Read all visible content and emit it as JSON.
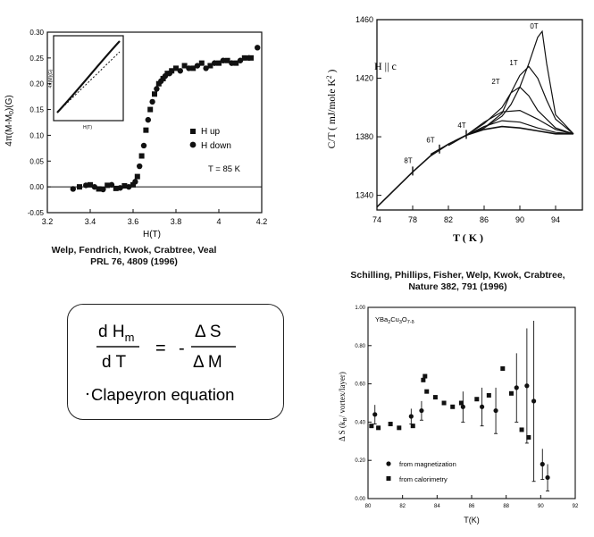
{
  "fig1": {
    "ylabel": "4π(M-M",
    "ylabel_sub": "0",
    "ylabel_tail": ")(G)",
    "xlabel": "H(T)",
    "legend_up": "H up",
    "legend_down": "H down",
    "temperature": "T = 85 K",
    "inset_xlabel": "H(T)",
    "inset_ylabel": "4π(M)(G)",
    "caption_line1": "Welp, Fendrich, Kwok, Crabtree, Veal",
    "caption_line2": "PRL 76, 4809 (1996)"
  },
  "fig2": {
    "title": "H || c",
    "ylabel": "C/T ( mJ/mole K",
    "ylabel_sup": "2",
    "ylabel_tail": " )",
    "xlabel": "T ( K )",
    "curve_labels": [
      "8T",
      "6T",
      "4T",
      "2T",
      "1T",
      "0T"
    ],
    "caption_line1": "Schilling, Phillips, Fisher, Welp, Kwok, Crabtree,",
    "caption_line2": "Nature 382, 791 (1996)"
  },
  "fig3": {
    "compound": "YBa",
    "compound_s1": "2",
    "compound_mid": "Cu",
    "compound_s2": "3",
    "compound_end": "O",
    "compound_s3": "7-δ",
    "ylabel": "Δ S (k",
    "ylabel_sub": "B",
    "ylabel_tail": "/ vortex/layer)",
    "xlabel": "T(K)",
    "legend_mag": "from magnetization",
    "legend_cal": "from calorimetry"
  },
  "equation": {
    "lhs_num": "d H",
    "lhs_num_sub": "m",
    "lhs_den": "d T",
    "equals": "=",
    "minus": "-",
    "rhs_num": "Δ S",
    "rhs_den": "Δ M",
    "name": "Clapeyron equation"
  },
  "chart_data": [
    {
      "type": "scatter",
      "title": "",
      "xlabel": "H(T)",
      "ylabel": "4π(M-M0)(G)",
      "xlim": [
        3.2,
        4.2
      ],
      "ylim": [
        -0.05,
        0.3
      ],
      "xticks": [
        3.2,
        3.4,
        3.6,
        3.8,
        4.0,
        4.2
      ],
      "xtick_labels": [
        "3.2",
        "3.4",
        "3.6",
        "3.8",
        "4",
        "4.2"
      ],
      "yticks": [
        -0.05,
        0.0,
        0.05,
        0.1,
        0.15,
        0.2,
        0.25,
        0.3
      ],
      "ytick_labels": [
        "-0.05",
        "0.00",
        "0.05",
        "0.10",
        "0.15",
        "0.20",
        "0.25",
        "0.30"
      ],
      "series": [
        {
          "name": "H up",
          "marker": "square",
          "x": [
            3.35,
            3.4,
            3.44,
            3.48,
            3.52,
            3.56,
            3.6,
            3.62,
            3.64,
            3.66,
            3.68,
            3.7,
            3.72,
            3.74,
            3.76,
            3.78,
            3.8,
            3.84,
            3.88,
            3.92,
            3.96,
            4.0,
            4.04,
            4.08,
            4.12,
            4.15
          ],
          "y": [
            0.0,
            0.004,
            -0.004,
            0.003,
            -0.003,
            0.002,
            0.004,
            0.02,
            0.06,
            0.11,
            0.15,
            0.18,
            0.2,
            0.21,
            0.22,
            0.225,
            0.23,
            0.235,
            0.23,
            0.24,
            0.235,
            0.24,
            0.245,
            0.24,
            0.25,
            0.25
          ]
        },
        {
          "name": "H down",
          "marker": "circle",
          "x": [
            3.32,
            3.38,
            3.42,
            3.46,
            3.5,
            3.54,
            3.58,
            3.61,
            3.63,
            3.65,
            3.67,
            3.69,
            3.71,
            3.73,
            3.75,
            3.77,
            3.82,
            3.86,
            3.9,
            3.94,
            3.98,
            4.02,
            4.06,
            4.1,
            4.14,
            4.18
          ],
          "y": [
            -0.004,
            0.003,
            0.0,
            -0.005,
            0.004,
            -0.002,
            0.0,
            0.01,
            0.04,
            0.08,
            0.13,
            0.165,
            0.19,
            0.205,
            0.215,
            0.22,
            0.225,
            0.23,
            0.235,
            0.23,
            0.24,
            0.245,
            0.24,
            0.245,
            0.25,
            0.27
          ]
        }
      ],
      "legend": "right",
      "annotation": "T = 85 K",
      "inset": {
        "type": "line",
        "xlabel": "H(T)",
        "description_series": [
          "data",
          "linear extrapolation"
        ]
      }
    },
    {
      "type": "line",
      "title": "H || c",
      "xlabel": "T ( K )",
      "ylabel": "C/T ( mJ/mole K2 )",
      "xlim": [
        74,
        97
      ],
      "ylim": [
        1330,
        1460
      ],
      "xticks": [
        74,
        78,
        82,
        86,
        90,
        94
      ],
      "yticks": [
        1340,
        1380,
        1420,
        1460
      ],
      "series": [
        {
          "name": "0T",
          "x": [
            84,
            86,
            88,
            89,
            90,
            91,
            92,
            92.5,
            93,
            94,
            96
          ],
          "y": [
            1381,
            1386,
            1394,
            1402,
            1414,
            1430,
            1448,
            1452,
            1430,
            1395,
            1382
          ]
        },
        {
          "name": "1T",
          "x": [
            84,
            86,
            88,
            89,
            90,
            91,
            92,
            93,
            94,
            96
          ],
          "y": [
            1381,
            1386,
            1396,
            1410,
            1422,
            1428,
            1420,
            1405,
            1392,
            1382
          ]
        },
        {
          "name": "2T",
          "x": [
            84,
            86,
            88,
            89,
            90,
            91,
            92,
            94,
            96
          ],
          "y": [
            1381,
            1389,
            1400,
            1410,
            1414,
            1408,
            1398,
            1386,
            1382
          ]
        },
        {
          "name": "4T",
          "x": [
            82,
            84,
            86,
            88,
            90,
            92,
            94,
            96
          ],
          "y": [
            1374,
            1381,
            1390,
            1397,
            1398,
            1392,
            1385,
            1382
          ]
        },
        {
          "name": "6T",
          "x": [
            80,
            82,
            84,
            86,
            88,
            90,
            92,
            94,
            96
          ],
          "y": [
            1368,
            1375,
            1381,
            1387,
            1391,
            1390,
            1386,
            1383,
            1382
          ]
        },
        {
          "name": "8T",
          "x": [
            74,
            76,
            78,
            80,
            82,
            84,
            86,
            88,
            90,
            92,
            94,
            96
          ],
          "y": [
            1332,
            1344,
            1356,
            1367,
            1375,
            1381,
            1385,
            1387,
            1386,
            1384,
            1382,
            1382
          ]
        }
      ],
      "annotations": [
        "8T",
        "6T",
        "4T",
        "2T",
        "1T",
        "0T"
      ]
    },
    {
      "type": "scatter",
      "title": "YBa2Cu3O7-δ",
      "xlabel": "T(K)",
      "ylabel": "Δ S (kB/ vortex/layer)",
      "xlim": [
        80,
        92
      ],
      "ylim": [
        0.0,
        1.0
      ],
      "xticks": [
        80,
        82,
        84,
        86,
        88,
        90,
        92
      ],
      "yticks": [
        0.0,
        0.2,
        0.4,
        0.6,
        0.8,
        1.0
      ],
      "ytick_labels": [
        "0.00",
        "0.20",
        "0.40",
        "0.60",
        "0.80",
        "1.00"
      ],
      "series": [
        {
          "name": "from magnetization",
          "marker": "circle",
          "x": [
            80.4,
            82.5,
            83.1,
            85.5,
            86.6,
            87.4,
            88.6,
            89.2,
            89.6,
            90.1,
            90.4
          ],
          "y": [
            0.44,
            0.43,
            0.46,
            0.48,
            0.48,
            0.46,
            0.58,
            0.59,
            0.51,
            0.18,
            0.11
          ],
          "err": [
            0.05,
            0.04,
            0.05,
            0.08,
            0.1,
            0.12,
            0.18,
            0.3,
            0.42,
            0.08,
            0.07
          ]
        },
        {
          "name": "from calorimetry",
          "marker": "square",
          "x": [
            80.2,
            80.6,
            81.3,
            81.8,
            82.6,
            83.2,
            83.3,
            83.4,
            83.9,
            84.4,
            84.9,
            85.4,
            86.3,
            87.0,
            87.8,
            88.3,
            88.9,
            89.3
          ],
          "y": [
            0.38,
            0.37,
            0.39,
            0.37,
            0.38,
            0.62,
            0.64,
            0.56,
            0.53,
            0.5,
            0.48,
            0.5,
            0.52,
            0.54,
            0.68,
            0.55,
            0.36,
            0.32
          ]
        }
      ],
      "legend": "bottom-left"
    }
  ]
}
